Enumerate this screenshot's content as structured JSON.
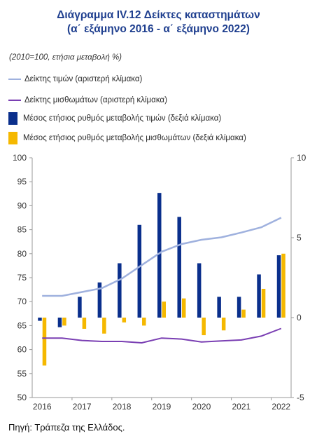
{
  "title_line1": "Διάγραμμα IV.12 Δείκτες καταστημάτων",
  "title_line2": "(α΄ εξάμηνο 2016 - α΄ εξάμηνο 2022)",
  "unit_note": "(2010=100, ετήσια μεταβολή %)",
  "source": "Πηγή: Τράπεζα της Ελλάδος.",
  "colors": {
    "price_index": "#9fb1de",
    "rent_index": "#7a3fb3",
    "price_change": "#0a2f8c",
    "rent_change": "#f5b800",
    "axis": "#999999"
  },
  "chart_data": {
    "type": "bar+line",
    "xlabel": "",
    "ylabel": "",
    "left_axis": {
      "min": 50,
      "max": 100,
      "ticks": [
        100,
        95,
        90,
        85,
        80,
        75,
        70,
        65,
        60,
        55,
        50
      ]
    },
    "right_axis": {
      "min": -5,
      "max": 10,
      "ticks": [
        10,
        5,
        0,
        -5
      ]
    },
    "x_tick_labels": [
      "2016",
      "2017",
      "2018",
      "2019",
      "2020",
      "2021",
      "2022"
    ],
    "periods": [
      "2016H1",
      "2016H2",
      "2017H1",
      "2017H2",
      "2018H1",
      "2018H2",
      "2019H1",
      "2019H2",
      "2020H1",
      "2020H2",
      "2021H1",
      "2021H2",
      "2022H1"
    ],
    "series": [
      {
        "name": "Δείκτης τιμών (αριστερή κλίμακα)",
        "axis": "left",
        "kind": "line",
        "values": [
          71.2,
          71.2,
          72.0,
          72.8,
          74.8,
          77.6,
          80.4,
          82.0,
          82.9,
          83.4,
          84.4,
          85.5,
          87.5
        ]
      },
      {
        "name": "Δείκτης μισθωμάτων (αριστερή κλίμακα)",
        "axis": "left",
        "kind": "line",
        "values": [
          62.4,
          62.4,
          61.9,
          61.7,
          61.7,
          61.4,
          62.4,
          62.2,
          61.6,
          61.8,
          62.0,
          62.8,
          64.4
        ]
      },
      {
        "name": "Μέσος ετήσιος ρυθμός μεταβολής τιμών (δεξιά κλίμακα)",
        "axis": "right",
        "kind": "bar",
        "values": [
          -0.2,
          -0.6,
          1.3,
          2.2,
          3.4,
          5.8,
          7.8,
          6.3,
          3.4,
          1.3,
          1.3,
          2.7,
          3.9
        ]
      },
      {
        "name": "Μέσος ετήσιος ρυθμός μεταβολής μισθωμάτων (δεξιά κλίμακα)",
        "axis": "right",
        "kind": "bar",
        "values": [
          -3.0,
          -0.5,
          -0.7,
          -1.0,
          -0.3,
          -0.5,
          1.0,
          1.2,
          -1.1,
          -0.8,
          0.5,
          1.8,
          4.0
        ]
      }
    ],
    "grid": false,
    "legend": "top"
  }
}
